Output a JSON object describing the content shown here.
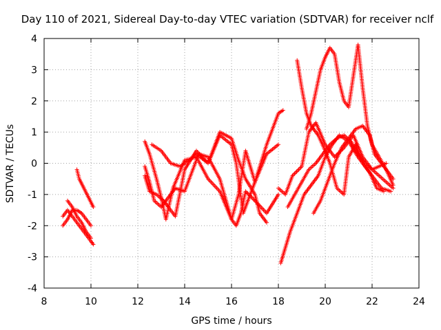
{
  "chart_data": {
    "type": "scatter",
    "title": "Day 110 of 2021, Sidereal Day-to-day VTEC variation (SDTVAR) for receiver nclf",
    "xlabel": "GPS time / hours",
    "ylabel": "SDTVAR / TECUs",
    "xlim": [
      8,
      24
    ],
    "ylim": [
      -4,
      4
    ],
    "xticks": [
      8,
      10,
      12,
      14,
      16,
      18,
      20,
      22,
      24
    ],
    "yticks": [
      -4,
      -3,
      -2,
      -1,
      0,
      1,
      2,
      3,
      4
    ],
    "grid": true,
    "marker": "+",
    "color": "#ff0000",
    "series": [
      {
        "name": "s1",
        "x": [
          8.8,
          9.0,
          9.2,
          9.4,
          9.6,
          9.8,
          10.0,
          10.1
        ],
        "y": [
          -1.7,
          -1.5,
          -1.7,
          -1.9,
          -2.1,
          -2.3,
          -2.5,
          -2.6
        ]
      },
      {
        "name": "s2",
        "x": [
          8.8,
          9.0,
          9.2,
          9.4,
          9.6,
          9.8,
          10.0
        ],
        "y": [
          -2.0,
          -1.8,
          -1.5,
          -1.5,
          -1.6,
          -1.8,
          -2.0
        ]
      },
      {
        "name": "s3",
        "x": [
          9.0,
          9.2,
          9.4,
          9.6,
          9.8,
          10.0
        ],
        "y": [
          -1.2,
          -1.4,
          -1.7,
          -1.9,
          -2.2,
          -2.4
        ]
      },
      {
        "name": "s4",
        "x": [
          9.4,
          9.5,
          9.7,
          9.9,
          10.1
        ],
        "y": [
          -0.2,
          -0.5,
          -0.8,
          -1.1,
          -1.4
        ]
      },
      {
        "name": "s5",
        "x": [
          12.3,
          12.5,
          12.8,
          13.1,
          13.4,
          13.6,
          14.0,
          14.5,
          15.0,
          15.5,
          16.0,
          16.2,
          16.5,
          17.0,
          17.5,
          18.0,
          18.2
        ],
        "y": [
          -0.4,
          -0.9,
          -1.0,
          -1.2,
          -1.5,
          -1.7,
          -0.2,
          0.4,
          0.0,
          0.9,
          0.6,
          0.0,
          -1.6,
          -0.6,
          0.6,
          1.6,
          1.7
        ]
      },
      {
        "name": "s6",
        "x": [
          12.3,
          12.5,
          12.8,
          13.0,
          13.2,
          13.5,
          14.0,
          14.5,
          15.0,
          15.5,
          16.0,
          16.2,
          16.4,
          16.6,
          17.0,
          17.5,
          18.0
        ],
        "y": [
          0.7,
          0.3,
          -0.5,
          -1.1,
          -1.8,
          -0.8,
          0.1,
          0.2,
          -0.5,
          -0.9,
          -1.8,
          -2.0,
          -1.6,
          -0.9,
          -1.2,
          -1.6,
          -1.0
        ]
      },
      {
        "name": "s7",
        "x": [
          12.3,
          12.5,
          12.7,
          13.0,
          13.3,
          13.6,
          14.0,
          14.3,
          14.6,
          15.0,
          15.5,
          16.0,
          16.3,
          16.6,
          17.0,
          17.5,
          18.0
        ],
        "y": [
          -0.1,
          -0.6,
          -1.2,
          -1.4,
          -1.1,
          -0.8,
          -0.9,
          -0.3,
          0.3,
          0.2,
          -0.5,
          -1.8,
          -1.0,
          0.4,
          -0.6,
          0.3,
          0.6
        ]
      },
      {
        "name": "s8",
        "x": [
          12.6,
          13.0,
          13.4,
          13.8,
          14.2,
          14.5,
          15.0,
          15.5,
          16.0,
          16.3,
          16.6,
          17.0,
          17.2,
          17.5
        ],
        "y": [
          0.6,
          0.4,
          0.0,
          -0.1,
          0.1,
          0.3,
          0.0,
          1.0,
          0.8,
          0.1,
          -0.5,
          -1.0,
          -1.6,
          -1.9
        ]
      },
      {
        "name": "s9",
        "x": [
          18.1,
          18.3,
          18.5,
          18.8,
          19.1,
          19.4,
          19.7,
          20.0,
          20.3,
          20.6,
          21.0,
          21.4,
          21.8,
          22.0,
          22.4,
          22.8
        ],
        "y": [
          -3.2,
          -2.7,
          -2.2,
          -1.6,
          -1.0,
          -0.7,
          -0.4,
          0.2,
          0.6,
          0.9,
          0.7,
          0.2,
          -0.2,
          -0.4,
          -0.8,
          -0.9
        ]
      },
      {
        "name": "s10",
        "x": [
          18.0,
          18.3,
          18.6,
          19.0,
          19.3,
          19.6,
          20.0,
          20.4,
          20.8,
          21.2,
          21.6,
          22.0,
          22.3,
          22.6
        ],
        "y": [
          -0.8,
          -1.0,
          -0.4,
          -0.1,
          1.0,
          1.3,
          0.6,
          0.2,
          0.5,
          0.9,
          0.2,
          -0.2,
          -0.1,
          0.0
        ]
      },
      {
        "name": "s11",
        "x": [
          18.8,
          19.0,
          19.2,
          19.4,
          19.7,
          20.0,
          20.2,
          20.5,
          20.8,
          21.0,
          21.3,
          21.6,
          21.9,
          22.2,
          22.5
        ],
        "y": [
          3.3,
          2.4,
          1.6,
          1.2,
          0.9,
          0.4,
          0.0,
          -0.8,
          -1.0,
          0.2,
          0.6,
          0.0,
          -0.3,
          -0.8,
          -0.9
        ]
      },
      {
        "name": "s12",
        "x": [
          19.2,
          19.4,
          19.6,
          19.8,
          20.0,
          20.2,
          20.4,
          20.6,
          20.8,
          21.0,
          21.2,
          21.4,
          21.6,
          21.8,
          22.0,
          22.3,
          22.6,
          22.9
        ],
        "y": [
          1.1,
          1.6,
          2.3,
          3.0,
          3.4,
          3.7,
          3.5,
          2.6,
          2.0,
          1.8,
          2.8,
          3.8,
          2.4,
          1.2,
          0.6,
          0.2,
          -0.2,
          -0.7
        ]
      },
      {
        "name": "s13",
        "x": [
          18.4,
          18.7,
          19.0,
          19.3,
          19.6,
          19.9,
          20.2,
          20.5,
          20.8,
          21.1,
          21.4,
          21.7,
          22.0,
          22.3,
          22.6,
          22.9
        ],
        "y": [
          -1.4,
          -1.0,
          -0.6,
          -0.2,
          0.0,
          0.3,
          0.6,
          0.8,
          0.9,
          0.7,
          0.3,
          0.0,
          -0.2,
          -0.4,
          -0.6,
          -0.8
        ]
      },
      {
        "name": "s14",
        "x": [
          19.5,
          19.8,
          20.1,
          20.4,
          20.7,
          21.0,
          21.3,
          21.6,
          21.9,
          22.1,
          22.4,
          22.7,
          22.9
        ],
        "y": [
          -1.6,
          -1.2,
          -0.6,
          0.0,
          0.5,
          0.8,
          1.1,
          1.2,
          0.9,
          0.3,
          0.0,
          -0.3,
          -0.5
        ]
      }
    ]
  }
}
